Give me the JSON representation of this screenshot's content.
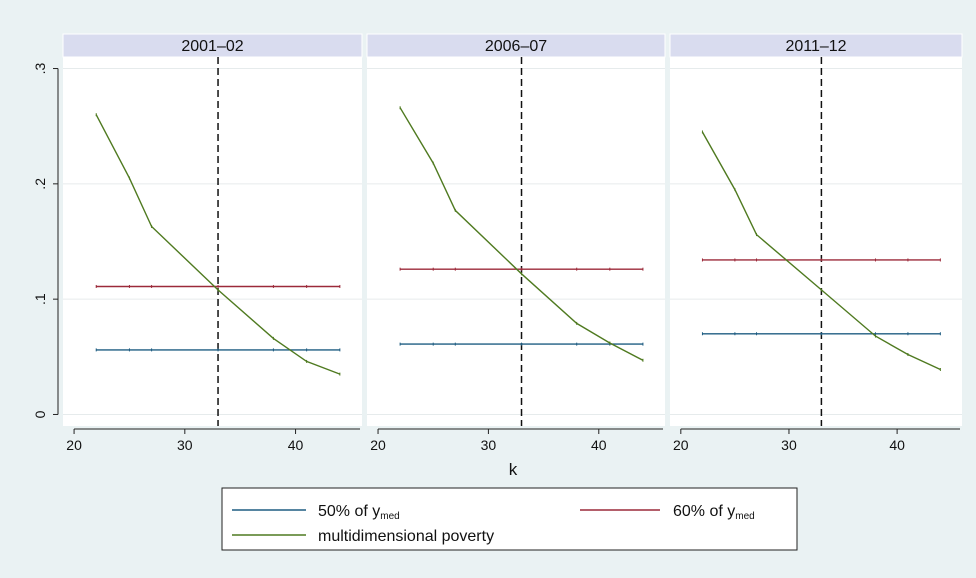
{
  "chart_data": {
    "type": "line",
    "xlabel": "k",
    "ylabel": "",
    "xlim": [
      19,
      46
    ],
    "ylim": [
      -0.01,
      0.31
    ],
    "x_ticks": [
      20,
      30,
      40
    ],
    "y_ticks": [
      0,
      0.1,
      0.2,
      0.3
    ],
    "y_tick_labels": [
      "0",
      ".1",
      ".2",
      ".3"
    ],
    "grid": true,
    "reference_line_x": 33,
    "legend_position": "bottom",
    "legend": [
      {
        "key": "p50",
        "base": "50% of y",
        "sub": "med",
        "color": "#1f5d82"
      },
      {
        "key": "p60",
        "base": "60% of y",
        "sub": "med",
        "color": "#9c2a3a"
      },
      {
        "key": "mdp",
        "base": "multidimensional poverty",
        "sub": "",
        "color": "#4f7a20"
      }
    ],
    "panels": [
      {
        "title": "2001–02",
        "series": [
          {
            "key": "p50",
            "x": [
              22,
              25,
              27,
              33,
              38,
              41,
              44
            ],
            "y": [
              0.056,
              0.056,
              0.056,
              0.056,
              0.056,
              0.056,
              0.056
            ]
          },
          {
            "key": "p60",
            "x": [
              22,
              25,
              27,
              33,
              38,
              41,
              44
            ],
            "y": [
              0.111,
              0.111,
              0.111,
              0.111,
              0.111,
              0.111,
              0.111
            ]
          },
          {
            "key": "mdp",
            "x": [
              22,
              25,
              27,
              33,
              38,
              41,
              44
            ],
            "y": [
              0.26,
              0.205,
              0.163,
              0.108,
              0.066,
              0.046,
              0.035
            ]
          }
        ]
      },
      {
        "title": "2006–07",
        "series": [
          {
            "key": "p50",
            "x": [
              22,
              25,
              27,
              33,
              38,
              41,
              44
            ],
            "y": [
              0.061,
              0.061,
              0.061,
              0.061,
              0.061,
              0.061,
              0.061
            ]
          },
          {
            "key": "p60",
            "x": [
              22,
              25,
              27,
              33,
              38,
              41,
              44
            ],
            "y": [
              0.126,
              0.126,
              0.126,
              0.126,
              0.126,
              0.126,
              0.126
            ]
          },
          {
            "key": "mdp",
            "x": [
              22,
              25,
              27,
              33,
              38,
              41,
              44
            ],
            "y": [
              0.266,
              0.218,
              0.177,
              0.122,
              0.079,
              0.062,
              0.047
            ]
          }
        ]
      },
      {
        "title": "2011–12",
        "series": [
          {
            "key": "p50",
            "x": [
              22,
              25,
              27,
              33,
              38,
              41,
              44
            ],
            "y": [
              0.07,
              0.07,
              0.07,
              0.07,
              0.07,
              0.07,
              0.07
            ]
          },
          {
            "key": "p60",
            "x": [
              22,
              25,
              27,
              33,
              38,
              41,
              44
            ],
            "y": [
              0.134,
              0.134,
              0.134,
              0.134,
              0.134,
              0.134,
              0.134
            ]
          },
          {
            "key": "mdp",
            "x": [
              22,
              25,
              27,
              33,
              38,
              41,
              44
            ],
            "y": [
              0.245,
              0.195,
              0.156,
              0.108,
              0.068,
              0.052,
              0.039
            ]
          }
        ]
      }
    ]
  }
}
